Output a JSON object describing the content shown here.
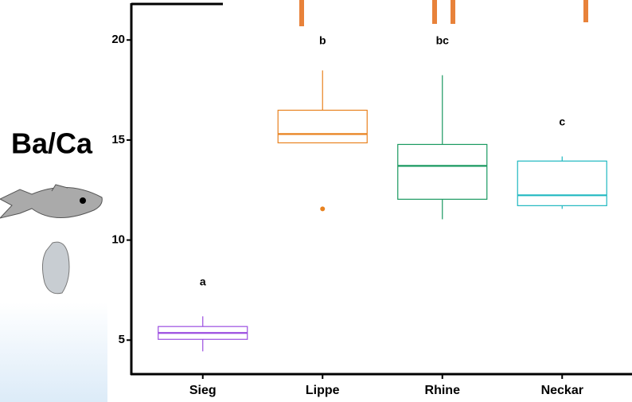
{
  "chart_data": {
    "type": "box",
    "y_label": "Ba/Ca",
    "categories": [
      "Sieg",
      "Lippe",
      "Rhine",
      "Neckar"
    ],
    "boxes": [
      {
        "min": 4.44,
        "q1": 5.04,
        "median": 5.36,
        "q3": 5.68,
        "max": 6.19,
        "outliers": [],
        "color": "#9b4de0"
      },
      {
        "min": 14.86,
        "q1": 14.86,
        "median": 15.3,
        "q3": 16.49,
        "max": 18.48,
        "outliers": [
          11.56
        ],
        "color": "#e8821f"
      },
      {
        "min": 11.04,
        "q1": 12.04,
        "median": 13.71,
        "q3": 14.78,
        "max": 18.24,
        "outliers": [],
        "color": "#1a9960"
      },
      {
        "min": 11.56,
        "q1": 11.72,
        "median": 12.24,
        "q3": 13.95,
        "max": 14.18,
        "outliers": [],
        "color": "#1fb8c0"
      }
    ],
    "letters": [
      "a",
      "b",
      "bc",
      "c"
    ],
    "ylim": [
      3.3,
      21.8
    ],
    "yticks": [
      5,
      10,
      15,
      20
    ]
  }
}
